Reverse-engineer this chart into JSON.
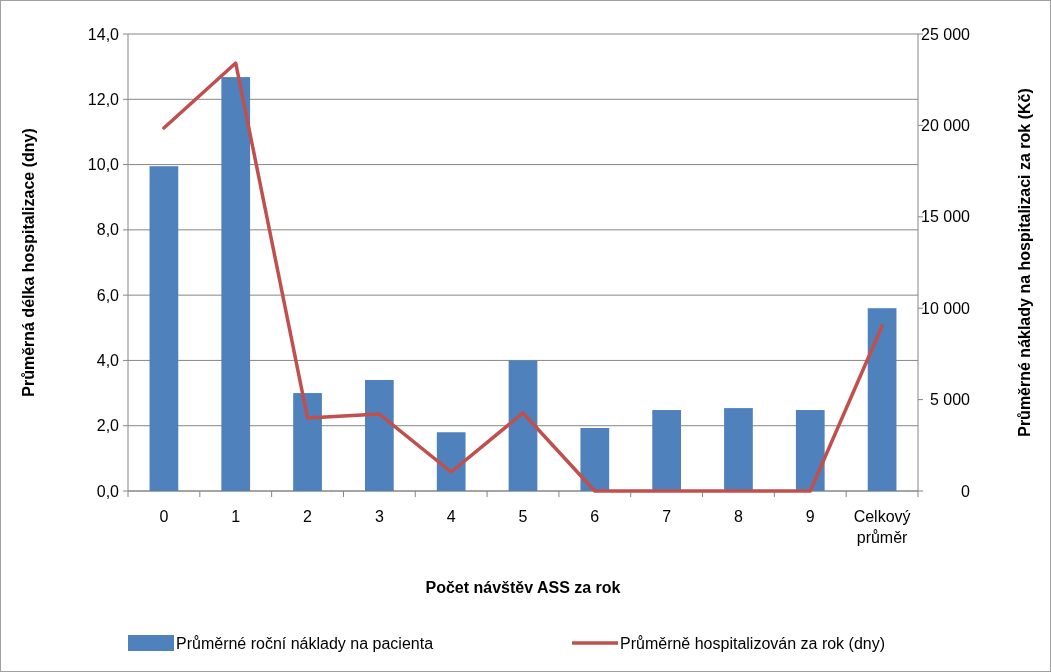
{
  "chart_data": {
    "type": "bar",
    "xlabel": "Počet návštěv ASS za rok",
    "ylabel": "Průměrná délka hospitalizace  (dny)",
    "y2label": "Průměrné náklady na hospitalizaci  za rok (Kč)",
    "categories": [
      "0",
      "1",
      "2",
      "3",
      "4",
      "5",
      "6",
      "7",
      "8",
      "9",
      "Celkový průměr"
    ],
    "series": [
      {
        "name": "Průměrné roční náklady na pacienta",
        "color": "#4f81bd",
        "values": [
          9.95,
          12.68,
          3.0,
          3.4,
          1.8,
          4.0,
          1.93,
          2.48,
          2.54,
          2.48,
          5.6
        ]
      },
      {
        "name": "Průměrně hospitalizován za rok (dny)",
        "type": "line",
        "axis": "y2",
        "color": "#c0504d",
        "values": [
          19860,
          23410,
          3990,
          4210,
          1040,
          4270,
          0,
          0,
          0,
          0,
          9030
        ]
      }
    ],
    "ylim": [
      0,
      14
    ],
    "yticks": [
      {
        "value": 0,
        "label": "0,0"
      },
      {
        "value": 2,
        "label": "2,0"
      },
      {
        "value": 4,
        "label": "4,0"
      },
      {
        "value": 6,
        "label": "6,0"
      },
      {
        "value": 8,
        "label": "8,0"
      },
      {
        "value": 10,
        "label": "10,0"
      },
      {
        "value": 12,
        "label": "12,0"
      },
      {
        "value": 14,
        "label": "14,0"
      }
    ],
    "y2lim": [
      0,
      25000
    ],
    "y2ticks": [
      0,
      {
        "value": 5000,
        "label": "5 000"
      },
      {
        "value": 10000,
        "label": "10 000"
      },
      {
        "value": 15000,
        "label": "15 000"
      },
      {
        "value": 20000,
        "label": "20 000"
      },
      {
        "value": 25000,
        "label": "25 000"
      }
    ],
    "grid": "y",
    "legend": "bottom",
    "line_style": "solid"
  }
}
